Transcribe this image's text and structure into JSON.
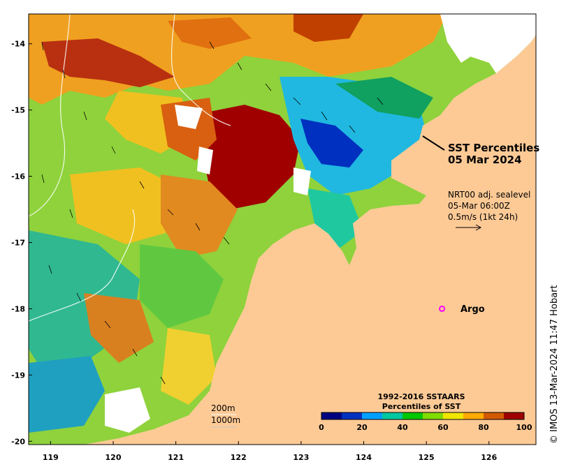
{
  "title": {
    "line1": "SST Percentiles",
    "line2": "05 Mar 2024"
  },
  "current_info": {
    "line1": "NRT00 adj. sealevel",
    "line2": "05-Mar 06:00Z",
    "line3": "0.5m/s (1kt 24h)"
  },
  "argo": {
    "label": "Argo",
    "marker_color": "#ff00ff",
    "lon": 125.25,
    "lat": -18.0
  },
  "contour_labels": {
    "depth1": "200m",
    "depth2": "1000m"
  },
  "credit": "© IMOS 13-Mar-2024 11:47 Hobart",
  "axes": {
    "x_ticks": [
      "119",
      "120",
      "121",
      "122",
      "123",
      "124",
      "125",
      "126"
    ],
    "y_ticks": [
      "-14",
      "-15",
      "-16",
      "-17",
      "-18",
      "-19",
      "-20"
    ],
    "x_range": [
      118.65,
      126.75
    ],
    "y_range": [
      -20.05,
      -13.55
    ]
  },
  "colorbar": {
    "title_line1": "1992-2016 SSTAARS",
    "title_line2": "Percentiles of SST",
    "tick_labels": [
      "0",
      "20",
      "40",
      "60",
      "80",
      "100"
    ],
    "colors": [
      "#000080",
      "#0030c0",
      "#00a0ff",
      "#00c8a0",
      "#00c800",
      "#80dc00",
      "#f0e600",
      "#ffaa00",
      "#d25a00",
      "#a00000"
    ]
  },
  "colors": {
    "land": "#fdca96"
  }
}
